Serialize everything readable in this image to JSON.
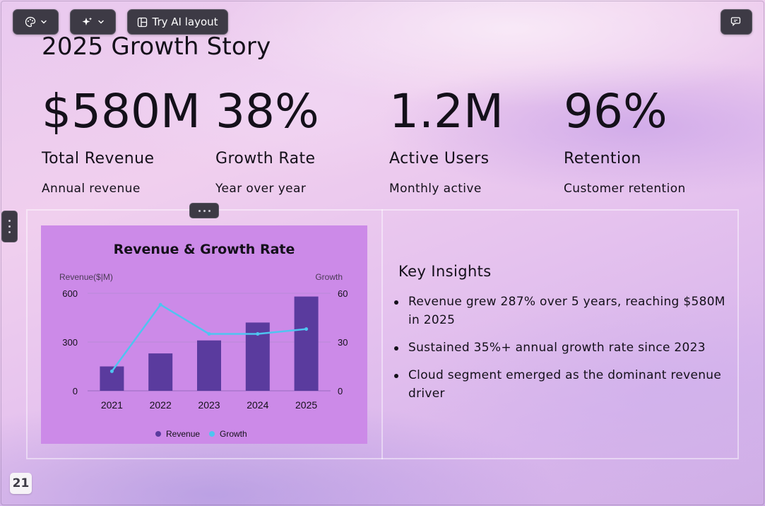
{
  "toolbar": {
    "theme_icon": "palette-icon",
    "ai_icon": "sparkle-icon",
    "layout_label": "Try AI layout",
    "layout_icon": "layout-icon",
    "comment_icon": "comment-icon"
  },
  "slide": {
    "title": "2025 Growth Story",
    "page_number": "21",
    "stats": [
      {
        "value": "$580M",
        "label": "Total Revenue",
        "sub": "Annual revenue"
      },
      {
        "value": "38%",
        "label": "Growth Rate",
        "sub": "Year over year"
      },
      {
        "value": "1.2M",
        "label": "Active Users",
        "sub": "Monthly active"
      },
      {
        "value": "96%",
        "label": "Retention",
        "sub": "Customer retention"
      }
    ],
    "insights": {
      "heading": "Key Insights",
      "items": [
        "Revenue grew 287% over 5 years, reaching $580M in 2025",
        "Sustained 35%+ annual growth rate since 2023",
        "Cloud segment emerged as the dominant revenue driver"
      ]
    }
  },
  "colors": {
    "bar": "#5a3b9e",
    "line": "#4fc4f0",
    "chart_bg": "#cc8ae8",
    "toolbar_bg": "#3d3a45"
  },
  "chart_data": {
    "type": "bar",
    "title": "Revenue & Growth Rate",
    "categories": [
      "2021",
      "2022",
      "2023",
      "2024",
      "2025"
    ],
    "y_left_label": "Revenue($|M)",
    "y_right_label": "Growth",
    "y_left_ticks": [
      "0",
      "300",
      "600"
    ],
    "y_right_ticks": [
      "0",
      "30",
      "60"
    ],
    "y_left_range": [
      0,
      600
    ],
    "y_right_range": [
      0,
      60
    ],
    "series": [
      {
        "name": "Revenue",
        "type": "bar",
        "axis": "left",
        "values": [
          150,
          230,
          310,
          420,
          580
        ]
      },
      {
        "name": "Growth",
        "type": "line",
        "axis": "right",
        "values": [
          12,
          53,
          35,
          35,
          38
        ]
      }
    ],
    "legend": "bottom",
    "grid": true
  }
}
